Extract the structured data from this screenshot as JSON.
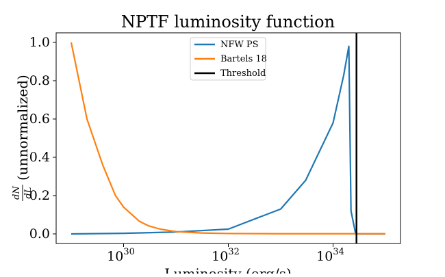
{
  "chart_data": {
    "type": "line",
    "title": "NPTF luminosity function",
    "xlabel": "Luminosity (erg/s)",
    "ylabel": {
      "fraction_numerator": "dN",
      "fraction_denominator": "dL",
      "text": "(unnormalized)"
    },
    "x_scale": "log",
    "xlim": [
      1e+29,
      1e+35
    ],
    "ylim": [
      -0.05,
      1.05
    ],
    "x_ticks": [
      {
        "base": "10",
        "exponent": "30",
        "value": 1e+30
      },
      {
        "base": "10",
        "exponent": "32",
        "value": 1e+32
      },
      {
        "base": "10",
        "exponent": "34",
        "value": 1e+34
      }
    ],
    "y_ticks": [
      {
        "label": "0.0",
        "value": 0.0
      },
      {
        "label": "0.2",
        "value": 0.2
      },
      {
        "label": "0.4",
        "value": 0.4
      },
      {
        "label": "0.6",
        "value": 0.6
      },
      {
        "label": "0.8",
        "value": 0.8
      },
      {
        "label": "1.0",
        "value": 1.0
      }
    ],
    "legend_placement": "top-center",
    "grid": false,
    "series": [
      {
        "name": "NFW PS",
        "color": "#1f77b4",
        "x": [
          1e+29,
          1e+30,
          1e+31,
          1e+32,
          1e+33,
          3e+33,
          1e+34,
          1.6e+34,
          2e+34,
          2.2e+34,
          2.7e+34,
          1e+35
        ],
        "y": [
          0.0,
          0.003,
          0.01,
          0.025,
          0.13,
          0.28,
          0.58,
          0.83,
          0.98,
          0.12,
          0.0,
          0.0
        ]
      },
      {
        "name": "Bartels 18",
        "color": "#ff7f0e",
        "x": [
          1e+29,
          2e+29,
          4e+29,
          7e+29,
          1e+30,
          2e+30,
          3e+30,
          5e+30,
          1e+31,
          3e+31,
          1e+32,
          1e+33,
          1e+34,
          1e+35
        ],
        "y": [
          1.0,
          0.6,
          0.36,
          0.2,
          0.14,
          0.066,
          0.042,
          0.025,
          0.012,
          0.005,
          0.002,
          0.001,
          0.001,
          0.001
        ]
      },
      {
        "name": "Threshold",
        "color": "#000000",
        "vertical_line_x": 2.8e+34
      }
    ]
  }
}
